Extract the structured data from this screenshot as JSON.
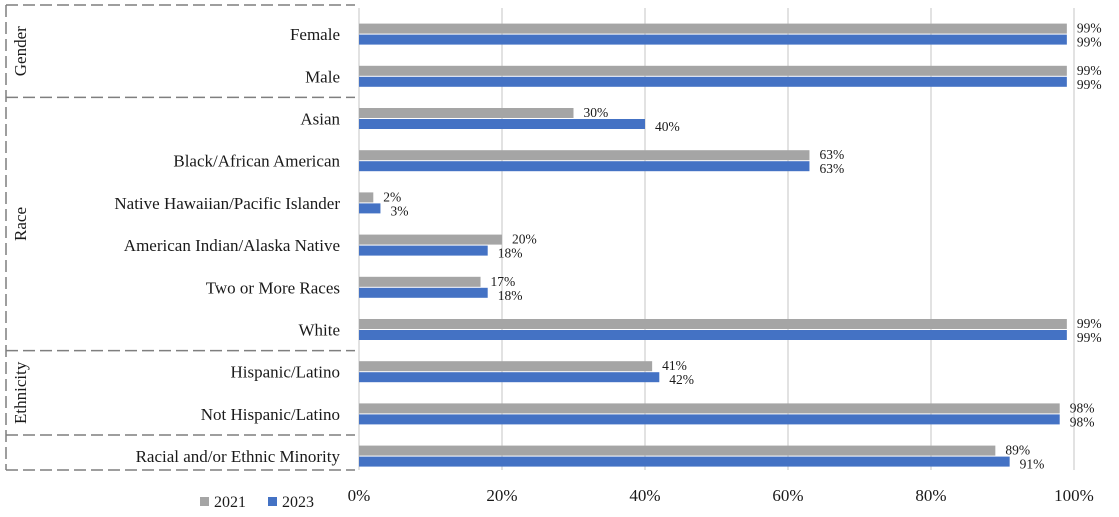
{
  "chart_data": {
    "type": "bar",
    "orientation": "horizontal",
    "categories": [
      "Female",
      "Male",
      "Asian",
      "Black/African American",
      "Native Hawaiian/Pacific Islander",
      "American Indian/Alaska Native",
      "Two or More Races",
      "White",
      "Hispanic/Latino",
      "Not Hispanic/Latino",
      "Racial and/or Ethnic Minority"
    ],
    "groups": [
      {
        "label": "Gender",
        "categories": [
          "Female",
          "Male"
        ]
      },
      {
        "label": "Race",
        "categories": [
          "Asian",
          "Black/African American",
          "Native Hawaiian/Pacific Islander",
          "American Indian/Alaska Native",
          "Two or More Races",
          "White"
        ]
      },
      {
        "label": "Ethnicity",
        "categories": [
          "Hispanic/Latino",
          "Not Hispanic/Latino"
        ]
      },
      {
        "label": "",
        "categories": [
          "Racial and/or Ethnic Minority"
        ]
      }
    ],
    "series": [
      {
        "name": "2021",
        "color": "#a5a5a5",
        "values": [
          99,
          99,
          30,
          63,
          2,
          20,
          17,
          99,
          41,
          98,
          89
        ],
        "labels": [
          "99%",
          "99%",
          "30%",
          "63%",
          "2%",
          "20%",
          "17%",
          "99%",
          "41%",
          "98%",
          "89%"
        ]
      },
      {
        "name": "2023",
        "color": "#4472c4",
        "values": [
          99,
          99,
          40,
          63,
          3,
          18,
          18,
          99,
          42,
          98,
          91
        ],
        "labels": [
          "99%",
          "99%",
          "40%",
          "63%",
          "3%",
          "18%",
          "18%",
          "99%",
          "42%",
          "98%",
          "91%"
        ]
      }
    ],
    "xlim": [
      0,
      100
    ],
    "x_ticks": [
      "0%",
      "20%",
      "40%",
      "60%",
      "80%",
      "100%"
    ],
    "grid": true,
    "legend": "bottom-left"
  }
}
